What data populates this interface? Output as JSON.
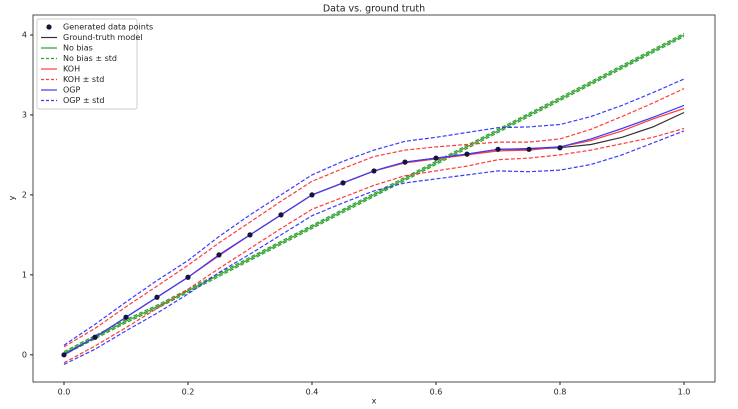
{
  "chart_data": {
    "type": "line",
    "title": "Data vs. ground truth",
    "x_label": "x",
    "y_label": "y",
    "xlim": [
      -0.05,
      1.05
    ],
    "ylim": [
      -0.34,
      4.25
    ],
    "xticks": [
      {
        "value": 0,
        "label": "0.0"
      },
      {
        "value": 0.2,
        "label": "0.2"
      },
      {
        "value": 0.4,
        "label": "0.4"
      },
      {
        "value": 0.6,
        "label": "0.6"
      },
      {
        "value": 0.8,
        "label": "0.8"
      },
      {
        "value": 1,
        "label": "1.0"
      }
    ],
    "yticks": [
      0,
      1,
      2,
      3,
      4
    ],
    "legend": "upper left",
    "points": {
      "name": "Generated data points",
      "color": "#14143c",
      "x": [
        0,
        0.05,
        0.1,
        0.15,
        0.2,
        0.25,
        0.3,
        0.35,
        0.4,
        0.45,
        0.5,
        0.55,
        0.6,
        0.65,
        0.7,
        0.75,
        0.8
      ],
      "values": [
        0,
        0.22,
        0.47,
        0.72,
        0.97,
        1.25,
        1.5,
        1.75,
        2.0,
        2.15,
        2.3,
        2.41,
        2.46,
        2.51,
        2.57,
        2.57,
        2.59
      ]
    },
    "x": [
      0,
      0.05,
      0.1,
      0.15,
      0.2,
      0.25,
      0.3,
      0.35,
      0.4,
      0.45,
      0.5,
      0.55,
      0.6,
      0.65,
      0.7,
      0.75,
      0.8,
      0.85,
      0.9,
      0.95,
      1.0
    ],
    "series": [
      {
        "name": "Ground-truth model",
        "color": "#333333",
        "style": "solid",
        "values": [
          0,
          0.22,
          0.47,
          0.72,
          0.97,
          1.25,
          1.5,
          1.75,
          2.0,
          2.15,
          2.3,
          2.41,
          2.46,
          2.51,
          2.57,
          2.57,
          2.59,
          2.63,
          2.72,
          2.85,
          3.03
        ]
      },
      {
        "name": "No bias",
        "color": "#2ca02c",
        "style": "solid",
        "values": [
          0.02,
          0.22,
          0.42,
          0.6,
          0.8,
          1.0,
          1.2,
          1.4,
          1.6,
          1.8,
          2.0,
          2.2,
          2.4,
          2.6,
          2.8,
          3.0,
          3.2,
          3.4,
          3.6,
          3.8,
          4.0
        ]
      },
      {
        "name": "No bias ± std",
        "color": "#2ca02c",
        "style": "dashed",
        "values": [
          0.04,
          0.24,
          0.44,
          0.62,
          0.82,
          1.02,
          1.22,
          1.42,
          1.62,
          1.82,
          2.02,
          2.22,
          2.42,
          2.62,
          2.82,
          3.02,
          3.22,
          3.42,
          3.62,
          3.82,
          4.02
        ],
        "values_lower": [
          0,
          0.2,
          0.4,
          0.58,
          0.78,
          0.98,
          1.18,
          1.38,
          1.58,
          1.78,
          1.98,
          2.18,
          2.38,
          2.58,
          2.78,
          2.98,
          3.18,
          3.38,
          3.58,
          3.78,
          3.98
        ]
      },
      {
        "name": "KOH",
        "color": "#ff3b3b",
        "style": "solid",
        "values": [
          0,
          0.22,
          0.47,
          0.72,
          0.97,
          1.24,
          1.5,
          1.75,
          2.0,
          2.15,
          2.3,
          2.4,
          2.45,
          2.5,
          2.55,
          2.56,
          2.6,
          2.68,
          2.8,
          2.95,
          3.08
        ]
      },
      {
        "name": "KOH ± std",
        "color": "#ff3b3b",
        "style": "dashed",
        "values": [
          0.1,
          0.33,
          0.6,
          0.86,
          1.12,
          1.4,
          1.66,
          1.92,
          2.17,
          2.33,
          2.48,
          2.56,
          2.6,
          2.63,
          2.66,
          2.66,
          2.7,
          2.82,
          2.98,
          3.15,
          3.33
        ],
        "values_lower": [
          -0.1,
          0.11,
          0.34,
          0.58,
          0.82,
          1.08,
          1.33,
          1.58,
          1.82,
          1.97,
          2.12,
          2.24,
          2.3,
          2.36,
          2.44,
          2.46,
          2.5,
          2.56,
          2.64,
          2.72,
          2.83
        ]
      },
      {
        "name": "OGP",
        "color": "#3b3bff",
        "style": "solid",
        "values": [
          0,
          0.22,
          0.47,
          0.72,
          0.97,
          1.25,
          1.5,
          1.75,
          2.0,
          2.15,
          2.3,
          2.41,
          2.46,
          2.51,
          2.57,
          2.58,
          2.6,
          2.7,
          2.83,
          2.97,
          3.12
        ]
      },
      {
        "name": "OGP ± std",
        "color": "#3b3bff",
        "style": "dashed",
        "values": [
          0.12,
          0.38,
          0.66,
          0.93,
          1.18,
          1.48,
          1.75,
          2.0,
          2.25,
          2.42,
          2.56,
          2.67,
          2.72,
          2.78,
          2.84,
          2.85,
          2.88,
          2.98,
          3.12,
          3.28,
          3.45
        ],
        "values_lower": [
          -0.12,
          0.07,
          0.3,
          0.52,
          0.76,
          1.03,
          1.26,
          1.5,
          1.74,
          1.9,
          2.05,
          2.15,
          2.2,
          2.25,
          2.3,
          2.29,
          2.31,
          2.38,
          2.5,
          2.65,
          2.8
        ]
      }
    ]
  }
}
